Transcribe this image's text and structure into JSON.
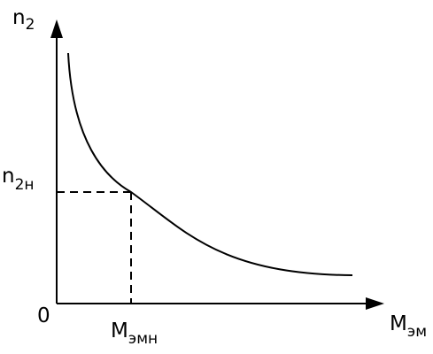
{
  "colors": {
    "ink": "#000000",
    "background": "#ffffff"
  },
  "axes": {
    "origin_label": "0",
    "y_label": {
      "main": "n",
      "sub": "2"
    },
    "x_label": {
      "main": "M",
      "sub": "эм"
    }
  },
  "marker": {
    "y_label": {
      "main": "n",
      "sub": "2н"
    },
    "x_label": {
      "main": "M",
      "sub": "эмн"
    }
  }
}
